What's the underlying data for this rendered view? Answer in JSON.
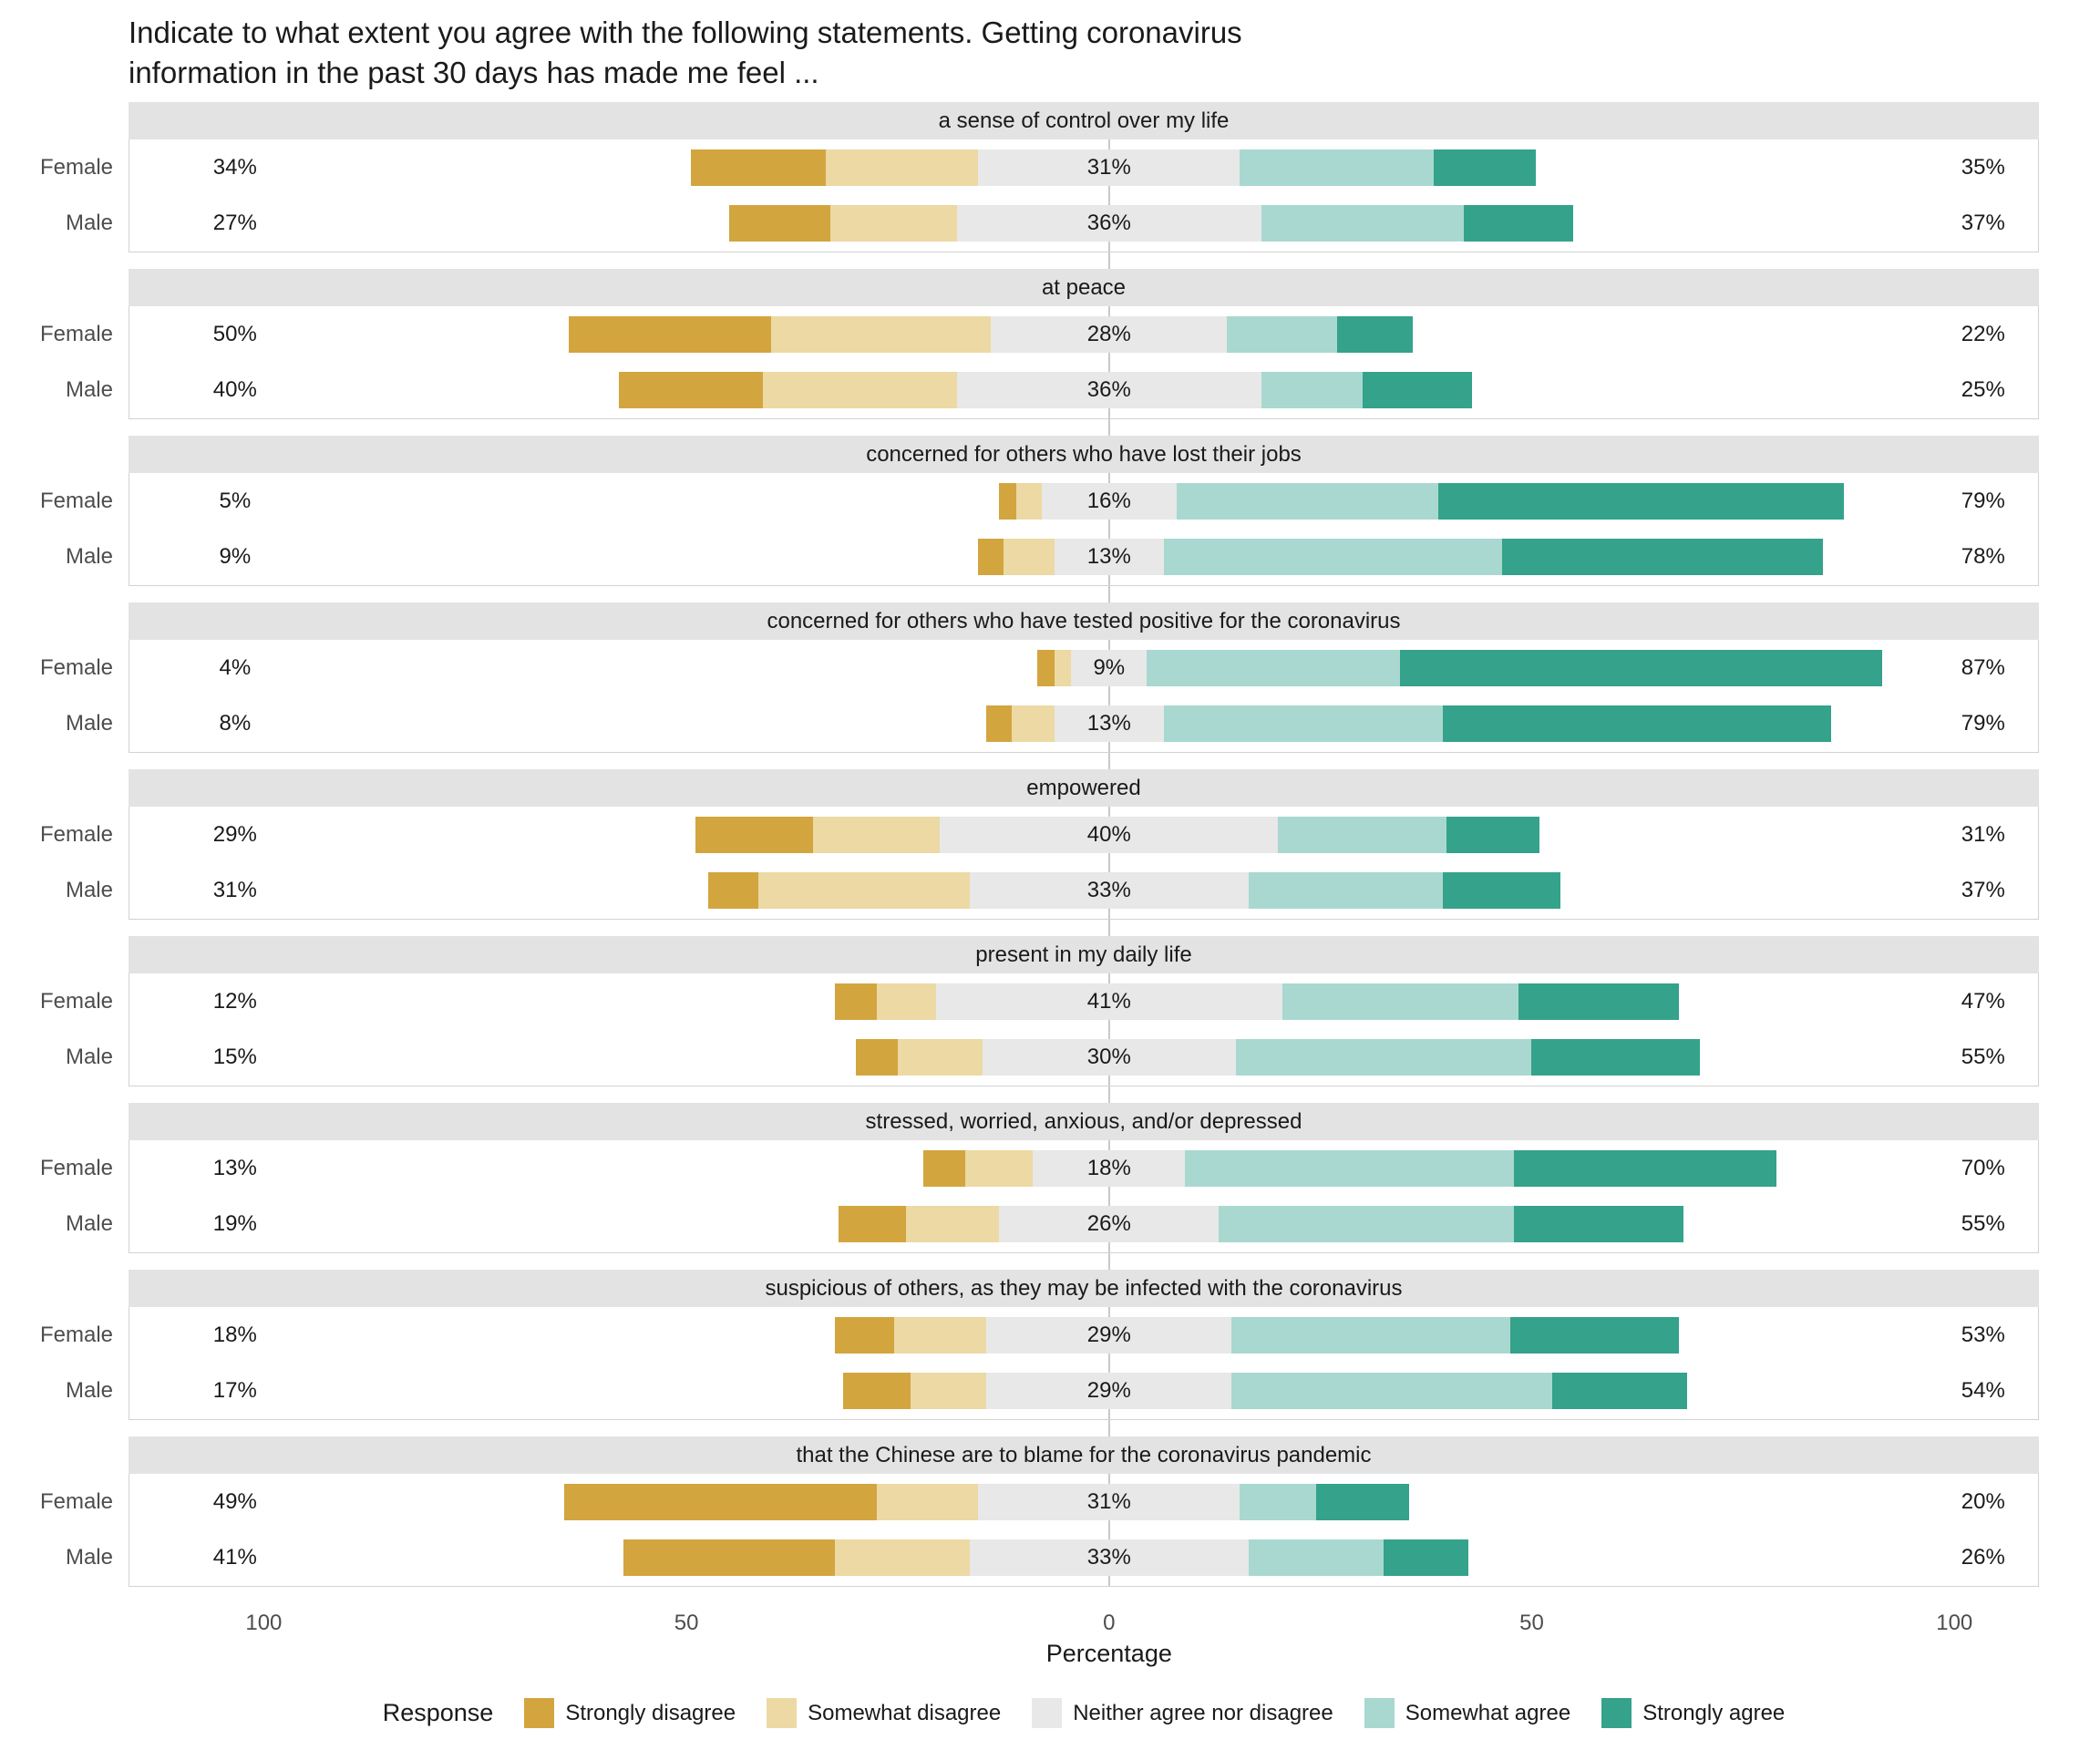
{
  "title": {
    "line1": "Indicate to what extent you agree with the following statements. Getting coronavirus",
    "line2": "information in the past 30 days has made me feel ..."
  },
  "chart_data": {
    "type": "bar",
    "variant": "diverging-stacked-likert",
    "xlabel": "Percentage",
    "xlim": [
      -116,
      110
    ],
    "x_ticks": [
      -100,
      -50,
      0,
      50,
      100
    ],
    "x_tick_labels": [
      "100",
      "50",
      "0",
      "50",
      "100"
    ],
    "grid": false,
    "zero_reference_line": true,
    "groups": [
      "Female",
      "Male"
    ],
    "legend": {
      "title": "Response",
      "position": "bottom",
      "entries": [
        {
          "key": "sd",
          "label": "Strongly disagree",
          "color": "#d3a53f"
        },
        {
          "key": "sod",
          "label": "Somewhat disagree",
          "color": "#ecd9a4"
        },
        {
          "key": "n",
          "label": "Neither agree nor disagree",
          "color": "#e8e8e8"
        },
        {
          "key": "soa",
          "label": "Somewhat agree",
          "color": "#a8d8cf"
        },
        {
          "key": "sa",
          "label": "Strongly agree",
          "color": "#35a28b"
        }
      ]
    },
    "segment_order": [
      "sd",
      "sod",
      "n",
      "soa",
      "sa"
    ],
    "facets": [
      {
        "label": "a sense of control over my life",
        "rows": [
          {
            "group": "Female",
            "pct_disagree": "34%",
            "pct_neutral": "31%",
            "pct_agree": "35%",
            "segments": {
              "sd": 16,
              "sod": 18,
              "n": 31,
              "soa": 23,
              "sa": 12
            }
          },
          {
            "group": "Male",
            "pct_disagree": "27%",
            "pct_neutral": "36%",
            "pct_agree": "37%",
            "segments": {
              "sd": 12,
              "sod": 15,
              "n": 36,
              "soa": 24,
              "sa": 13
            }
          }
        ]
      },
      {
        "label": "at peace",
        "rows": [
          {
            "group": "Female",
            "pct_disagree": "50%",
            "pct_neutral": "28%",
            "pct_agree": "22%",
            "segments": {
              "sd": 24,
              "sod": 26,
              "n": 28,
              "soa": 13,
              "sa": 9
            }
          },
          {
            "group": "Male",
            "pct_disagree": "40%",
            "pct_neutral": "36%",
            "pct_agree": "25%",
            "segments": {
              "sd": 17,
              "sod": 23,
              "n": 36,
              "soa": 12,
              "sa": 13
            }
          }
        ]
      },
      {
        "label": "concerned for others who have lost their jobs",
        "rows": [
          {
            "group": "Female",
            "pct_disagree": "5%",
            "pct_neutral": "16%",
            "pct_agree": "79%",
            "segments": {
              "sd": 2,
              "sod": 3,
              "n": 16,
              "soa": 31,
              "sa": 48
            }
          },
          {
            "group": "Male",
            "pct_disagree": "9%",
            "pct_neutral": "13%",
            "pct_agree": "78%",
            "segments": {
              "sd": 3,
              "sod": 6,
              "n": 13,
              "soa": 40,
              "sa": 38
            }
          }
        ]
      },
      {
        "label": "concerned for others who have tested positive for the coronavirus",
        "rows": [
          {
            "group": "Female",
            "pct_disagree": "4%",
            "pct_neutral": "9%",
            "pct_agree": "87%",
            "segments": {
              "sd": 2,
              "sod": 2,
              "n": 9,
              "soa": 30,
              "sa": 57
            }
          },
          {
            "group": "Male",
            "pct_disagree": "8%",
            "pct_neutral": "13%",
            "pct_agree": "79%",
            "segments": {
              "sd": 3,
              "sod": 5,
              "n": 13,
              "soa": 33,
              "sa": 46
            }
          }
        ]
      },
      {
        "label": "empowered",
        "rows": [
          {
            "group": "Female",
            "pct_disagree": "29%",
            "pct_neutral": "40%",
            "pct_agree": "31%",
            "segments": {
              "sd": 14,
              "sod": 15,
              "n": 40,
              "soa": 20,
              "sa": 11
            }
          },
          {
            "group": "Male",
            "pct_disagree": "31%",
            "pct_neutral": "33%",
            "pct_agree": "37%",
            "segments": {
              "sd": 6,
              "sod": 25,
              "n": 33,
              "soa": 23,
              "sa": 14
            }
          }
        ]
      },
      {
        "label": "present in my daily life",
        "rows": [
          {
            "group": "Female",
            "pct_disagree": "12%",
            "pct_neutral": "41%",
            "pct_agree": "47%",
            "segments": {
              "sd": 5,
              "sod": 7,
              "n": 41,
              "soa": 28,
              "sa": 19
            }
          },
          {
            "group": "Male",
            "pct_disagree": "15%",
            "pct_neutral": "30%",
            "pct_agree": "55%",
            "segments": {
              "sd": 5,
              "sod": 10,
              "n": 30,
              "soa": 35,
              "sa": 20
            }
          }
        ]
      },
      {
        "label": "stressed, worried, anxious, and/or depressed",
        "rows": [
          {
            "group": "Female",
            "pct_disagree": "13%",
            "pct_neutral": "18%",
            "pct_agree": "70%",
            "segments": {
              "sd": 5,
              "sod": 8,
              "n": 18,
              "soa": 39,
              "sa": 31
            }
          },
          {
            "group": "Male",
            "pct_disagree": "19%",
            "pct_neutral": "26%",
            "pct_agree": "55%",
            "segments": {
              "sd": 8,
              "sod": 11,
              "n": 26,
              "soa": 35,
              "sa": 20
            }
          }
        ]
      },
      {
        "label": "suspicious of others, as they may be infected with the coronavirus",
        "rows": [
          {
            "group": "Female",
            "pct_disagree": "18%",
            "pct_neutral": "29%",
            "pct_agree": "53%",
            "segments": {
              "sd": 7,
              "sod": 11,
              "n": 29,
              "soa": 33,
              "sa": 20
            }
          },
          {
            "group": "Male",
            "pct_disagree": "17%",
            "pct_neutral": "29%",
            "pct_agree": "54%",
            "segments": {
              "sd": 8,
              "sod": 9,
              "n": 29,
              "soa": 38,
              "sa": 16
            }
          }
        ]
      },
      {
        "label": "that the Chinese are to blame for the coronavirus pandemic",
        "rows": [
          {
            "group": "Female",
            "pct_disagree": "49%",
            "pct_neutral": "31%",
            "pct_agree": "20%",
            "segments": {
              "sd": 37,
              "sod": 12,
              "n": 31,
              "soa": 9,
              "sa": 11
            }
          },
          {
            "group": "Male",
            "pct_disagree": "41%",
            "pct_neutral": "33%",
            "pct_agree": "26%",
            "segments": {
              "sd": 25,
              "sod": 16,
              "n": 33,
              "soa": 16,
              "sa": 10
            }
          }
        ]
      }
    ]
  }
}
